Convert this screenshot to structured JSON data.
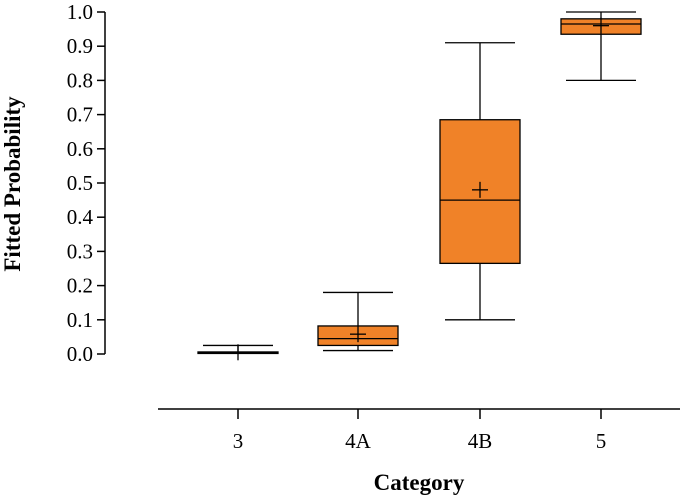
{
  "chart_data": {
    "type": "boxplot",
    "xlabel": "Category",
    "ylabel": "Fitted Probability",
    "ylim": [
      0.0,
      1.0
    ],
    "yticks": [
      "0.0",
      "0.1",
      "0.2",
      "0.3",
      "0.4",
      "0.5",
      "0.6",
      "0.7",
      "0.8",
      "0.9",
      "1.0"
    ],
    "grid": false,
    "box_color": "#f08228",
    "line_color": "#000000",
    "categories": [
      "3",
      "4A",
      "4B",
      "5"
    ],
    "boxes": [
      {
        "category": "3",
        "min": 0.002,
        "q1": 0.003,
        "median": 0.004,
        "q3": 0.006,
        "max": 0.025,
        "mean": 0.005
      },
      {
        "category": "4A",
        "min": 0.01,
        "q1": 0.025,
        "median": 0.045,
        "q3": 0.082,
        "max": 0.18,
        "mean": 0.058
      },
      {
        "category": "4B",
        "min": 0.1,
        "q1": 0.265,
        "median": 0.45,
        "q3": 0.685,
        "max": 0.91,
        "mean": 0.48
      },
      {
        "category": "5",
        "min": 0.8,
        "q1": 0.935,
        "median": 0.965,
        "q3": 0.98,
        "max": 1.0,
        "mean": 0.96
      }
    ]
  }
}
